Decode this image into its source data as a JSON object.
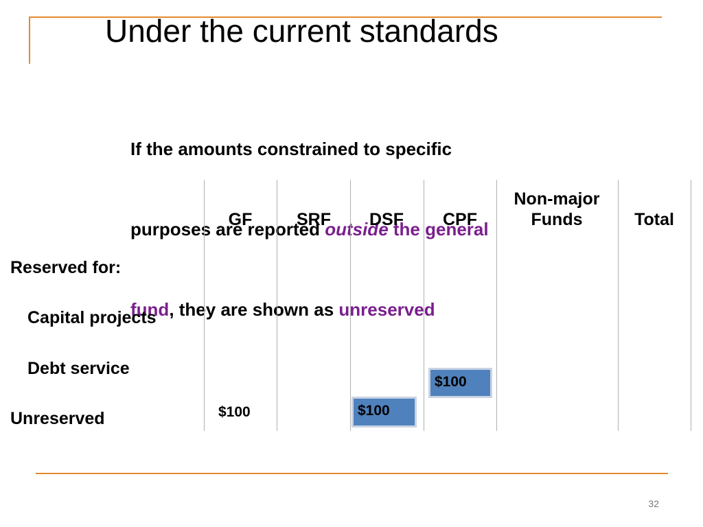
{
  "title": "Under the current standards",
  "intro": {
    "lines": [
      [
        "If the amounts constrained to specific"
      ],
      [
        "purposes are reported ",
        "outside",
        " the general"
      ],
      [
        "fund",
        ", they are shown as ",
        "unreserved"
      ]
    ]
  },
  "table": {
    "columns": [
      "GF",
      "SRF",
      "DSF",
      "CPF",
      "Non-major Funds",
      "Total"
    ],
    "rows": [
      "Reserved for:",
      "Capital projects",
      "Debt service",
      "Unreserved"
    ],
    "amounts": [
      "$100",
      "$100",
      "$100"
    ]
  },
  "page_number": "32"
}
